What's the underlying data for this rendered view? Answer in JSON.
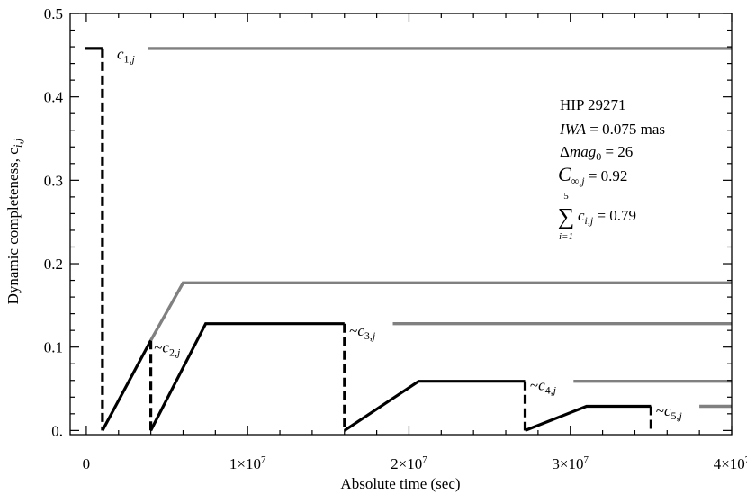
{
  "chart_data": {
    "type": "line",
    "xlabel": "Absolute time (sec)",
    "ylabel": "Dynamic completeness, c",
    "ylabel_sub": "i,j",
    "xlim": [
      -1000000,
      40000000
    ],
    "ylim": [
      -0.005,
      0.5
    ],
    "x_ticks": [
      {
        "value": 0,
        "label": "0",
        "exp": ""
      },
      {
        "value": 10000000,
        "label": "1×10",
        "exp": "7"
      },
      {
        "value": 20000000,
        "label": "2×10",
        "exp": "7"
      },
      {
        "value": 30000000,
        "label": "3×10",
        "exp": "7"
      },
      {
        "value": 40000000,
        "label": "4×10",
        "exp": "7"
      }
    ],
    "y_ticks": [
      {
        "value": 0,
        "label": "0."
      },
      {
        "value": 0.1,
        "label": "0.1"
      },
      {
        "value": 0.2,
        "label": "0.2"
      },
      {
        "value": 0.3,
        "label": "0.3"
      },
      {
        "value": 0.4,
        "label": "0.4"
      },
      {
        "value": 0.5,
        "label": "0.5"
      }
    ],
    "grid": false,
    "segments": [
      {
        "name": "",
        "color": "#000000",
        "style": "solid",
        "points": [
          [
            -100000,
            0.458
          ],
          [
            1000000,
            0.458
          ]
        ]
      },
      {
        "name": "",
        "color": "#000000",
        "style": "dashed",
        "points": [
          [
            1000000,
            0.458
          ],
          [
            1000000,
            0
          ]
        ]
      },
      {
        "name": "",
        "color": "#808080",
        "style": "solid",
        "points": [
          [
            3800000,
            0.458
          ],
          [
            40000000,
            0.458
          ]
        ]
      },
      {
        "name": "",
        "color": "#000000",
        "style": "solid",
        "points": [
          [
            1000000,
            0
          ],
          [
            4000000,
            0.108
          ]
        ]
      },
      {
        "name": "",
        "color": "#000000",
        "style": "dashed",
        "points": [
          [
            4000000,
            0.108
          ],
          [
            4000000,
            0
          ]
        ]
      },
      {
        "name": "",
        "color": "#808080",
        "style": "solid",
        "points": [
          [
            4000000,
            0.108
          ],
          [
            6000000,
            0.177
          ],
          [
            40000000,
            0.177
          ]
        ]
      },
      {
        "name": "",
        "color": "#000000",
        "style": "solid",
        "points": [
          [
            4000000,
            0
          ],
          [
            7400000,
            0.128
          ],
          [
            16000000,
            0.128
          ]
        ]
      },
      {
        "name": "",
        "color": "#000000",
        "style": "dashed",
        "points": [
          [
            16000000,
            0.128
          ],
          [
            16000000,
            0
          ]
        ]
      },
      {
        "name": "",
        "color": "#808080",
        "style": "solid",
        "points": [
          [
            19000000,
            0.128
          ],
          [
            40000000,
            0.128
          ]
        ]
      },
      {
        "name": "",
        "color": "#000000",
        "style": "solid",
        "points": [
          [
            16000000,
            0
          ],
          [
            20600000,
            0.059
          ],
          [
            27200000,
            0.059
          ]
        ]
      },
      {
        "name": "",
        "color": "#000000",
        "style": "dashed",
        "points": [
          [
            27200000,
            0.059
          ],
          [
            27200000,
            0
          ]
        ]
      },
      {
        "name": "",
        "color": "#808080",
        "style": "solid",
        "points": [
          [
            30200000,
            0.059
          ],
          [
            40000000,
            0.059
          ]
        ]
      },
      {
        "name": "",
        "color": "#000000",
        "style": "solid",
        "points": [
          [
            27200000,
            0
          ],
          [
            31000000,
            0.029
          ],
          [
            35000000,
            0.029
          ]
        ]
      },
      {
        "name": "",
        "color": "#000000",
        "style": "dashed",
        "points": [
          [
            35000000,
            0.029
          ],
          [
            35000000,
            0
          ]
        ]
      },
      {
        "name": "",
        "color": "#808080",
        "style": "solid",
        "points": [
          [
            38000000,
            0.029
          ],
          [
            40000000,
            0.029
          ]
        ]
      }
    ],
    "curve_labels": [
      {
        "prefix": "",
        "main": "c",
        "sub": "1,",
        "subj": "j",
        "x": 1900000,
        "y": 0.452
      },
      {
        "prefix": "~",
        "main": "c",
        "sub": "2,",
        "subj": "j",
        "x": 4200000,
        "y": 0.1
      },
      {
        "prefix": "~",
        "main": "c",
        "sub": "3,",
        "subj": "j",
        "x": 16300000,
        "y": 0.12
      },
      {
        "prefix": "~",
        "main": "c",
        "sub": "4,",
        "subj": "j",
        "x": 27500000,
        "y": 0.055
      },
      {
        "prefix": "~",
        "main": "c",
        "sub": "5,",
        "subj": "j",
        "x": 35300000,
        "y": 0.024
      }
    ]
  },
  "annotation": {
    "star": "HIP 29271",
    "iwa_name": "IWA",
    "iwa_value": " = 0.075 mas",
    "dmag_symbol": "Δ",
    "dmag_name": "mag",
    "dmag_sub": "0",
    "dmag_value": " = 26",
    "cinf_main": "C",
    "cinf_sub": "∞,",
    "cinf_subj": "j",
    "cinf_value": " = 0.92",
    "sum_top": "5",
    "sum_symbol": "∑",
    "sum_bottom": "i=1",
    "sum_main": "c",
    "sum_sub": "i,j",
    "sum_value": " = 0.79"
  }
}
